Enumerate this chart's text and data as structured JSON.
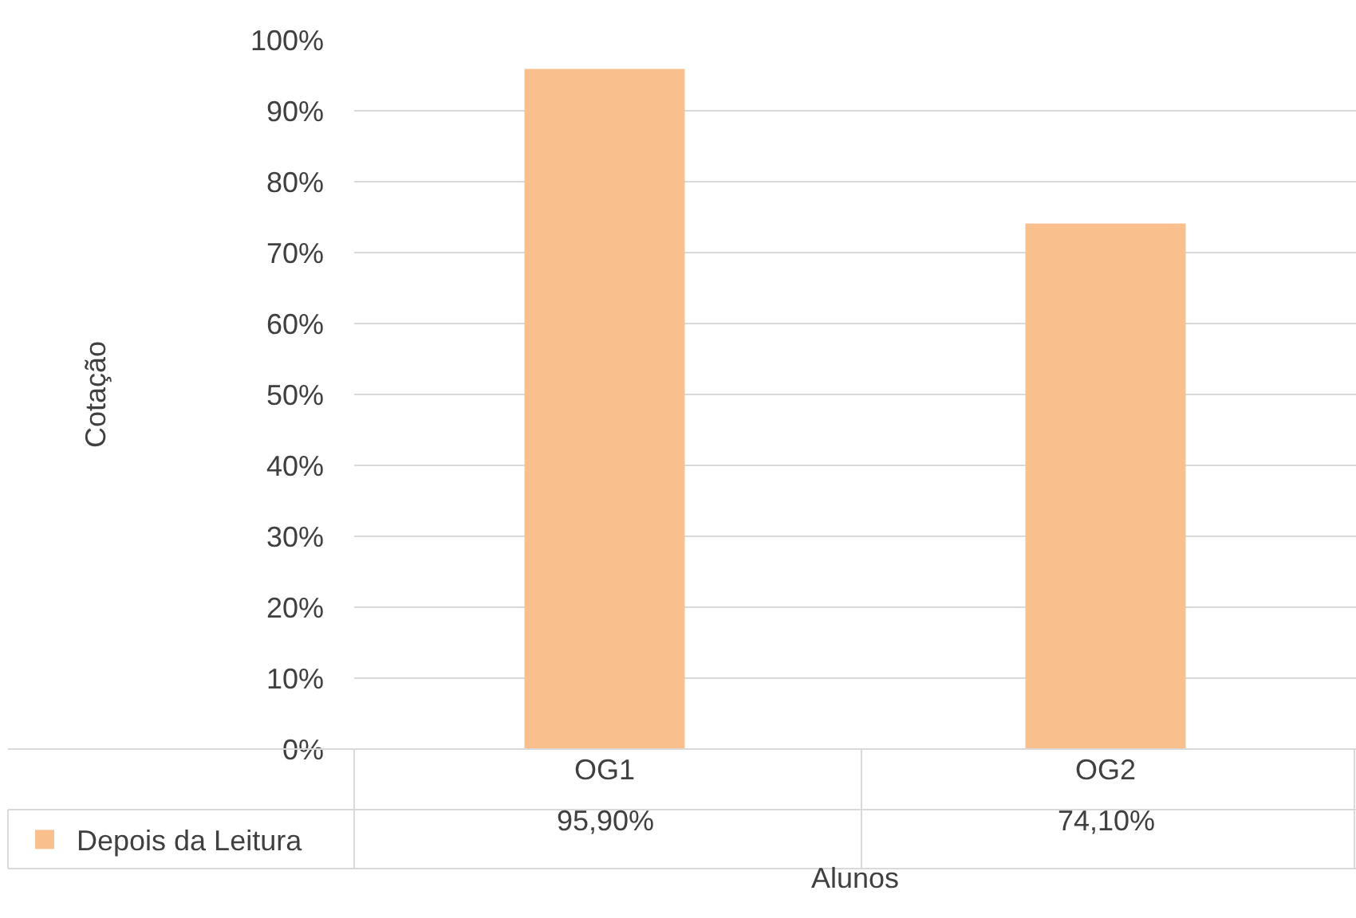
{
  "chart_data": {
    "type": "bar",
    "xlabel": "Alunos",
    "ylabel": "Cotação",
    "categories": [
      "OG1",
      "OG2"
    ],
    "series": [
      {
        "name": "Depois da Leitura",
        "color": "#f9c08e",
        "values": [
          95.9,
          74.1
        ],
        "value_labels": [
          "95,90%",
          "74,10%"
        ]
      }
    ],
    "ylim": [
      0,
      100
    ],
    "yticks": [
      {
        "value": 0,
        "label": "0%"
      },
      {
        "value": 10,
        "label": "10%"
      },
      {
        "value": 20,
        "label": "20%"
      },
      {
        "value": 30,
        "label": "30%"
      },
      {
        "value": 40,
        "label": "40%"
      },
      {
        "value": 50,
        "label": "50%"
      },
      {
        "value": 60,
        "label": "60%"
      },
      {
        "value": 70,
        "label": "70%"
      },
      {
        "value": 80,
        "label": "80%"
      },
      {
        "value": 90,
        "label": "90%"
      },
      {
        "value": 100,
        "label": "100%"
      }
    ],
    "grid": "y",
    "legend": "bottom"
  }
}
